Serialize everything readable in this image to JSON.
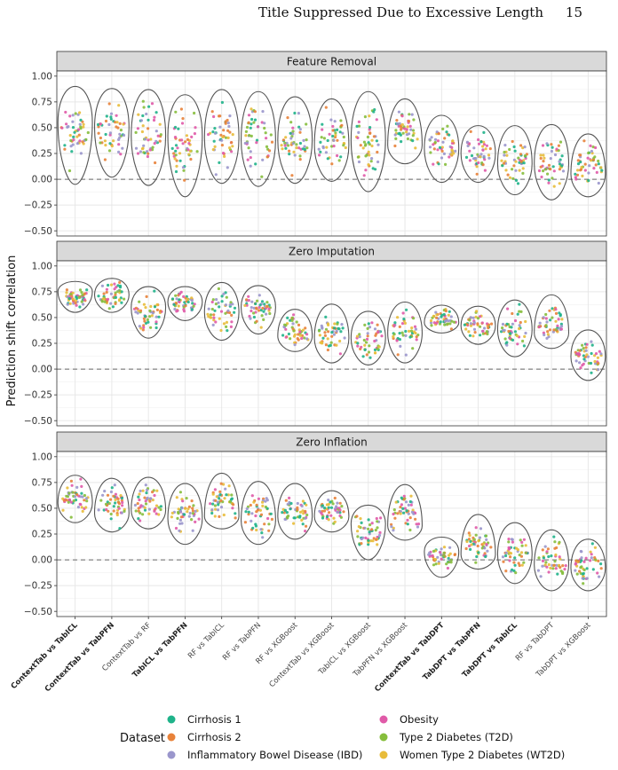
{
  "header": {
    "running_title": "Title Suppressed Due to Excessive Length",
    "page_number": "15"
  },
  "chart_data": {
    "type": "violin",
    "ylabel": "Prediction shift correlation",
    "ylim": [
      -0.55,
      1.05
    ],
    "yticks": [
      -0.5,
      -0.25,
      0,
      0.25,
      0.5,
      0.75,
      1
    ],
    "ytick_labels": [
      "−0.50",
      "−0.25",
      "0.00",
      "0.25",
      "0.50",
      "0.75",
      "1.00"
    ],
    "reference_line": 0,
    "categories": [
      "ContextTab vs TabICL",
      "ContextTab vs TabPFN",
      "ContextTab vs RF",
      "TabICL vs TabPFN",
      "RF vs TabICL",
      "RF vs TabPFN",
      "RF vs XGBoost",
      "ContextTab vs XGBoost",
      "TabICL vs XGBoost",
      "TabPFN vs XGBoost",
      "ContextTab vs TabDPT",
      "TabDPT vs TabPFN",
      "TabDPT vs TabICL",
      "RF vs TabDPT",
      "TabDPT vs XGBoost"
    ],
    "bold_categories": [
      "ContextTab vs TabICL",
      "ContextTab vs TabPFN",
      "TabICL vs TabPFN",
      "ContextTab vs TabDPT",
      "TabDPT vs TabPFN",
      "TabDPT vs TabICL"
    ],
    "panels": [
      {
        "title": "Feature Removal",
        "ranges": [
          [
            -0.05,
            0.9
          ],
          [
            0.02,
            0.88
          ],
          [
            -0.06,
            0.87
          ],
          [
            -0.17,
            0.82
          ],
          [
            -0.04,
            0.87
          ],
          [
            -0.07,
            0.85
          ],
          [
            -0.04,
            0.8
          ],
          [
            -0.02,
            0.78
          ],
          [
            -0.12,
            0.85
          ],
          [
            0.15,
            0.78
          ],
          [
            -0.03,
            0.62
          ],
          [
            -0.03,
            0.52
          ],
          [
            -0.15,
            0.52
          ],
          [
            -0.2,
            0.53
          ],
          [
            -0.17,
            0.44
          ]
        ],
        "medians": [
          0.55,
          0.5,
          0.42,
          0.42,
          0.4,
          0.38,
          0.38,
          0.33,
          0.38,
          0.33,
          0.3,
          0.25,
          0.15,
          0.15,
          0.05
        ]
      },
      {
        "title": "Zero Imputation",
        "ranges": [
          [
            0.55,
            0.85
          ],
          [
            0.55,
            0.88
          ],
          [
            0.3,
            0.8
          ],
          [
            0.47,
            0.8
          ],
          [
            0.28,
            0.84
          ],
          [
            0.34,
            0.81
          ],
          [
            0.17,
            0.58
          ],
          [
            0.06,
            0.63
          ],
          [
            0.04,
            0.56
          ],
          [
            0.06,
            0.65
          ],
          [
            0.35,
            0.62
          ],
          [
            0.24,
            0.61
          ],
          [
            0.12,
            0.67
          ],
          [
            0.2,
            0.72
          ],
          [
            -0.11,
            0.38
          ]
        ],
        "medians": [
          0.75,
          0.72,
          0.6,
          0.65,
          0.55,
          0.6,
          0.32,
          0.3,
          0.3,
          0.35,
          0.45,
          0.42,
          0.38,
          0.35,
          0.12
        ]
      },
      {
        "title": "Zero Inflation",
        "ranges": [
          [
            0.36,
            0.82
          ],
          [
            0.27,
            0.79
          ],
          [
            0.3,
            0.8
          ],
          [
            0.15,
            0.74
          ],
          [
            0.3,
            0.84
          ],
          [
            0.15,
            0.76
          ],
          [
            0.2,
            0.74
          ],
          [
            0.27,
            0.67
          ],
          [
            0.0,
            0.53
          ],
          [
            0.19,
            0.73
          ],
          [
            -0.17,
            0.22
          ],
          [
            -0.09,
            0.44
          ],
          [
            -0.23,
            0.36
          ],
          [
            -0.3,
            0.29
          ],
          [
            -0.3,
            0.2
          ]
        ],
        "medians": [
          0.55,
          0.45,
          0.48,
          0.4,
          0.42,
          0.38,
          0.42,
          0.42,
          0.35,
          0.33,
          0.08,
          0.05,
          0.05,
          -0.05,
          -0.08
        ]
      }
    ],
    "legend": {
      "title": "Dataset",
      "placement": "bottom",
      "entries": [
        {
          "name": "Cirrhosis 1",
          "color": "#1fb38a"
        },
        {
          "name": "Cirrhosis 2",
          "color": "#e8823a"
        },
        {
          "name": "Inflammatory Bowel Disease (IBD)",
          "color": "#9a96cc"
        },
        {
          "name": "Obesity",
          "color": "#e05aa8"
        },
        {
          "name": "Type 2 Diabetes (T2D)",
          "color": "#86be3c"
        },
        {
          "name": "Women Type 2 Diabetes (WT2D)",
          "color": "#e8bc3a"
        }
      ]
    }
  }
}
